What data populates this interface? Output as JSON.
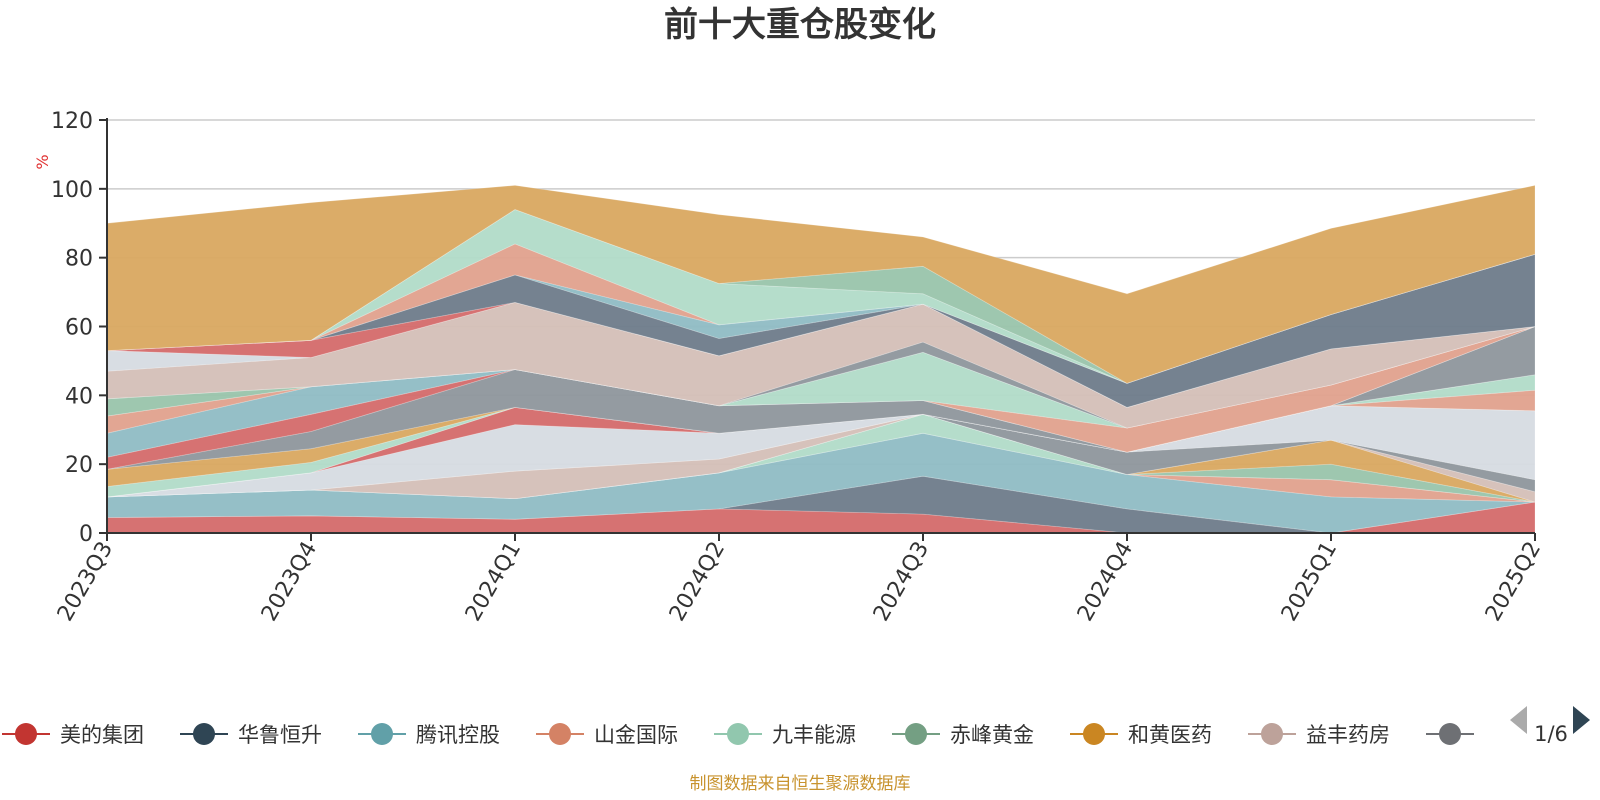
{
  "chart_data": {
    "type": "area",
    "title": "前十大重仓股变化",
    "ylabel": "%",
    "ylim": [
      0,
      120
    ],
    "yticks": [
      0,
      20,
      40,
      60,
      80,
      100,
      120
    ],
    "categories": [
      "2023Q3",
      "2023Q4",
      "2024Q1",
      "2024Q2",
      "2024Q3",
      "2024Q4",
      "2025Q1",
      "2025Q2"
    ],
    "grid": true,
    "series": [
      {
        "name": "美的集团",
        "color": "#d46a6a",
        "values": [
          4.5,
          5.0,
          4.0,
          7.0,
          5.5,
          0,
          0,
          9.0
        ]
      },
      {
        "name": "华鲁恒升",
        "color": "#6e7b8a",
        "values": [
          0,
          0,
          0,
          0,
          11.0,
          7.0,
          0,
          0
        ]
      },
      {
        "name": "腾讯控股",
        "color": "#8fbcc4",
        "values": [
          6.0,
          7.5,
          6.0,
          10.5,
          12.5,
          10.0,
          10.5,
          0
        ]
      },
      {
        "name": "山金国际",
        "color": "#e0a18d",
        "values": [
          0,
          0,
          0,
          0,
          0,
          0,
          5.0,
          0
        ]
      },
      {
        "name": "九丰能源",
        "color": "#b1dbc8",
        "values": [
          0,
          0,
          0,
          0,
          5.5,
          0,
          0,
          0
        ]
      },
      {
        "name": "赤峰黄金",
        "color": "#99c4ab",
        "values": [
          0,
          0,
          0,
          0,
          0,
          0,
          4.5,
          0
        ]
      },
      {
        "name": "和黄医药",
        "color": "#d9a860",
        "values": [
          0,
          0,
          0,
          0,
          0,
          0,
          7.0,
          0
        ]
      },
      {
        "name": "益丰药房",
        "color": "#d4bfb7",
        "values": [
          0,
          0,
          8.0,
          4.0,
          0,
          0,
          0,
          3.0
        ]
      },
      {
        "name": "",
        "color": "#8e969c",
        "values": [
          0,
          0,
          0,
          0,
          0,
          6.5,
          0,
          3.5
        ]
      },
      {
        "name": "",
        "color": "#d6dbe2",
        "values": [
          0,
          5.0,
          13.5,
          7.5,
          0,
          0,
          10.0,
          20.0
        ]
      },
      {
        "name": "",
        "color": "#d46a6a",
        "values": [
          0,
          0,
          5.0,
          0,
          0,
          0,
          0,
          0
        ]
      },
      {
        "name": "",
        "color": "#e0a18d",
        "values": [
          0,
          0,
          0,
          0,
          0,
          0,
          0,
          6.0
        ]
      },
      {
        "name": "",
        "color": "#b1dbc8",
        "values": [
          3.0,
          3.0,
          0,
          0,
          0,
          0,
          0,
          4.5
        ]
      },
      {
        "name": "",
        "color": "#d9a860",
        "values": [
          5.0,
          4.0,
          0,
          0,
          0,
          0,
          0,
          0
        ]
      },
      {
        "name": "",
        "color": "#8e969c",
        "values": [
          0,
          5.0,
          11.0,
          8.0,
          4.0,
          0,
          0,
          14.0
        ]
      },
      {
        "name": "",
        "color": "#d46a6a",
        "values": [
          3.5,
          5.0,
          0,
          0,
          0,
          0,
          0,
          0
        ]
      },
      {
        "name": "",
        "color": "#8fbcc4",
        "values": [
          7.0,
          8.0,
          0,
          0,
          0,
          0,
          0,
          0
        ]
      },
      {
        "name": "",
        "color": "#e0a18d",
        "values": [
          5.0,
          0,
          0,
          0,
          0,
          7.0,
          6.0,
          0
        ]
      },
      {
        "name": "",
        "color": "#b1dbc8",
        "values": [
          0,
          0,
          0,
          0,
          14.0,
          0,
          0,
          0
        ]
      },
      {
        "name": "",
        "color": "#99c4ab",
        "values": [
          5.0,
          0,
          0,
          0,
          0,
          0,
          0,
          0
        ]
      },
      {
        "name": "",
        "color": "#8e969c",
        "values": [
          0,
          0,
          0,
          0,
          3.0,
          0,
          0,
          0
        ]
      },
      {
        "name": "",
        "color": "#d4bfb7",
        "values": [
          8.0,
          8.5,
          19.5,
          14.5,
          11.0,
          6.0,
          10.5,
          0
        ]
      },
      {
        "name": "",
        "color": "#d6dbe2",
        "values": [
          6.0,
          0,
          0,
          0,
          0,
          0,
          0,
          0
        ]
      },
      {
        "name": "",
        "color": "#d46a6a",
        "values": [
          0,
          5.0,
          0,
          0,
          0,
          0,
          0,
          0
        ]
      },
      {
        "name": "",
        "color": "#6e7b8a",
        "values": [
          0,
          0,
          8.0,
          5.0,
          0,
          7.0,
          10.0,
          21.0
        ]
      },
      {
        "name": "",
        "color": "#8fbcc4",
        "values": [
          0,
          0,
          0,
          4.0,
          0,
          0,
          0,
          0
        ]
      },
      {
        "name": "",
        "color": "#e0a18d",
        "values": [
          0,
          0,
          9.0,
          0,
          0,
          0,
          0,
          0
        ]
      },
      {
        "name": "",
        "color": "#b1dbc8",
        "values": [
          0,
          0,
          10.0,
          12.0,
          3.0,
          0,
          0,
          0
        ]
      },
      {
        "name": "",
        "color": "#99c4ab",
        "values": [
          0,
          0,
          0,
          0,
          8.0,
          0,
          0,
          0
        ]
      },
      {
        "name": "",
        "color": "#d9a860",
        "values": [
          37.0,
          40.0,
          7.0,
          20.0,
          8.5,
          26.0,
          25.0,
          20.0
        ]
      }
    ]
  },
  "legend": {
    "items": [
      {
        "label": "美的集团",
        "color": "#c23531"
      },
      {
        "label": "华鲁恒升",
        "color": "#2f4554"
      },
      {
        "label": "腾讯控股",
        "color": "#61a0a8"
      },
      {
        "label": "山金国际",
        "color": "#d48265"
      },
      {
        "label": "九丰能源",
        "color": "#91c7ae"
      },
      {
        "label": "赤峰黄金",
        "color": "#749f83"
      },
      {
        "label": "和黄医药",
        "color": "#ca8622"
      },
      {
        "label": "益丰药房",
        "color": "#bda29a"
      },
      {
        "label": "",
        "color": "#6e7074"
      }
    ],
    "page": "1/6"
  },
  "source": "制图数据来自恒生聚源数据库"
}
